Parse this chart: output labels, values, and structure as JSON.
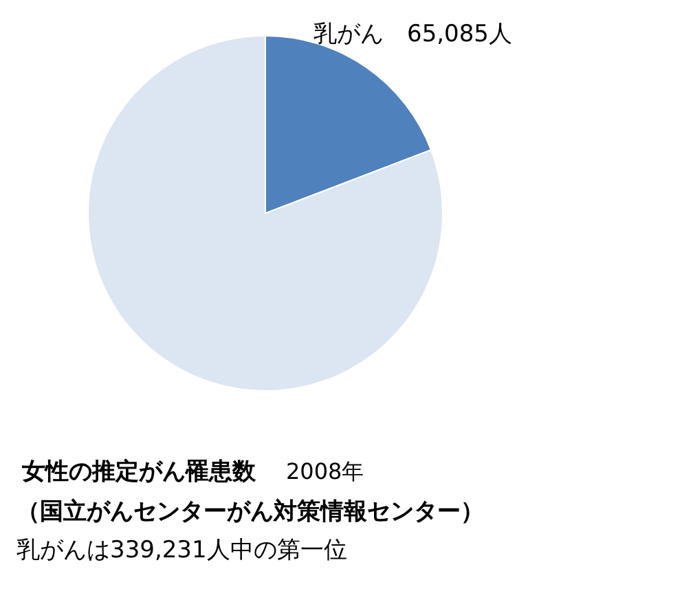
{
  "chart_data": {
    "type": "pie",
    "title": "女性の推定がん罹患数",
    "subtitle": "2008年",
    "annotations": [
      "（国立がんセンターがん対策情報センター）",
      "乳がんは339,231人中の第一位"
    ],
    "categories": [
      "乳がん",
      null
    ],
    "values": [
      65085,
      274146
    ],
    "colors": [
      "#4f81bd",
      "#dce6f2"
    ],
    "value_labels": [
      "65,085人",
      null
    ],
    "legend": false
  }
}
